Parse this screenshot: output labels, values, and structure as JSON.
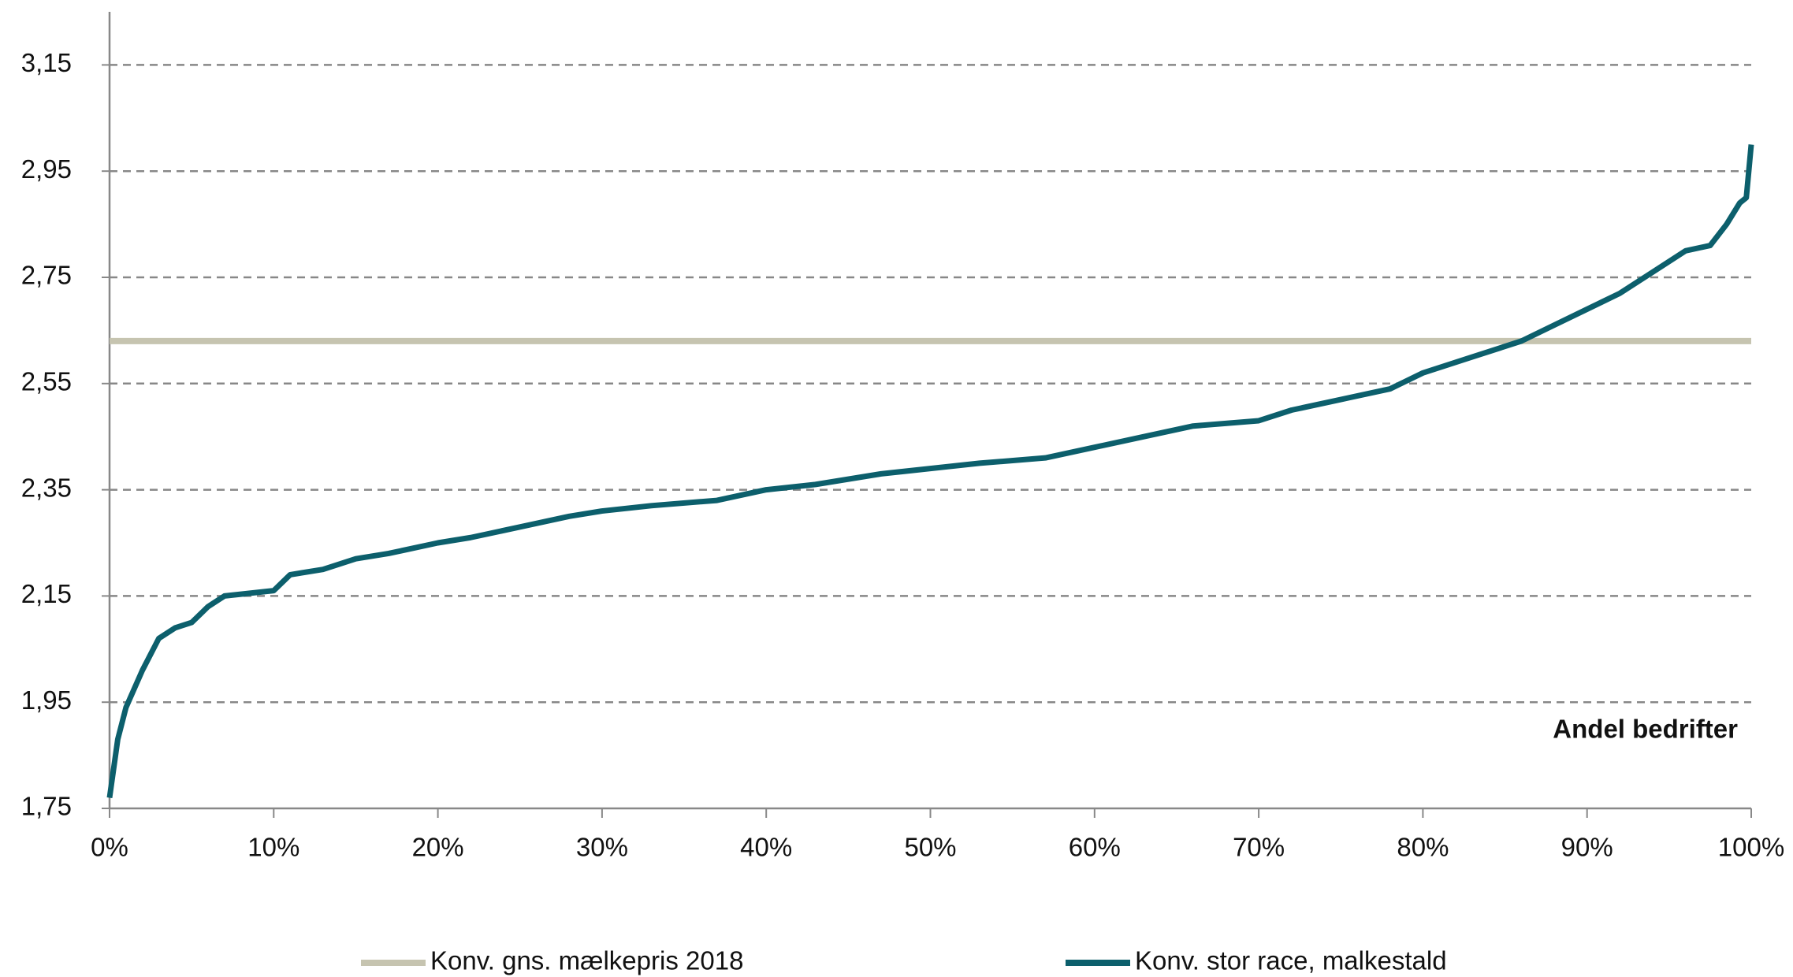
{
  "chart_data": {
    "type": "line",
    "annotation": "Andel bedrifter",
    "xlim": [
      0,
      100
    ],
    "xticks": [
      {
        "value": 0,
        "label": "0%"
      },
      {
        "value": 10,
        "label": "10%"
      },
      {
        "value": 20,
        "label": "20%"
      },
      {
        "value": 30,
        "label": "30%"
      },
      {
        "value": 40,
        "label": "40%"
      },
      {
        "value": 50,
        "label": "50%"
      },
      {
        "value": 60,
        "label": "60%"
      },
      {
        "value": 70,
        "label": "70%"
      },
      {
        "value": 80,
        "label": "80%"
      },
      {
        "value": 90,
        "label": "90%"
      },
      {
        "value": 100,
        "label": "100%"
      }
    ],
    "ylim": [
      1.75,
      3.25
    ],
    "yticks": [
      {
        "value": 1.75,
        "label": "1,75"
      },
      {
        "value": 1.95,
        "label": "1,95"
      },
      {
        "value": 2.15,
        "label": "2,15"
      },
      {
        "value": 2.35,
        "label": "2,35"
      },
      {
        "value": 2.55,
        "label": "2,55"
      },
      {
        "value": 2.75,
        "label": "2,75"
      },
      {
        "value": 2.95,
        "label": "2,95"
      },
      {
        "value": 3.15,
        "label": "3,15"
      }
    ],
    "grid": true,
    "series": [
      {
        "name": "Konv. gns. mælkepris 2018",
        "color": "#c6c4b0",
        "x": [
          0,
          100
        ],
        "values": [
          2.63,
          2.63
        ]
      },
      {
        "name": "Konv. stor race, malkestald",
        "color": "#0c5f6c",
        "x": [
          0,
          0.5,
          1,
          2,
          3,
          4,
          5,
          6,
          7,
          10,
          11,
          13,
          15,
          17,
          20,
          22,
          25,
          28,
          30,
          33,
          37,
          40,
          43,
          47,
          50,
          53,
          57,
          60,
          63,
          66,
          70,
          72,
          75,
          78,
          80,
          83,
          86,
          88,
          90,
          92,
          94,
          96,
          97.5,
          98.5,
          99.3,
          99.7,
          100
        ],
        "values": [
          1.77,
          1.88,
          1.94,
          2.01,
          2.07,
          2.09,
          2.1,
          2.13,
          2.15,
          2.16,
          2.19,
          2.2,
          2.22,
          2.23,
          2.25,
          2.26,
          2.28,
          2.3,
          2.31,
          2.32,
          2.33,
          2.35,
          2.36,
          2.38,
          2.39,
          2.4,
          2.41,
          2.43,
          2.45,
          2.47,
          2.48,
          2.5,
          2.52,
          2.54,
          2.57,
          2.6,
          2.63,
          2.66,
          2.69,
          2.72,
          2.76,
          2.8,
          2.81,
          2.85,
          2.89,
          2.9,
          3.0
        ]
      }
    ]
  }
}
